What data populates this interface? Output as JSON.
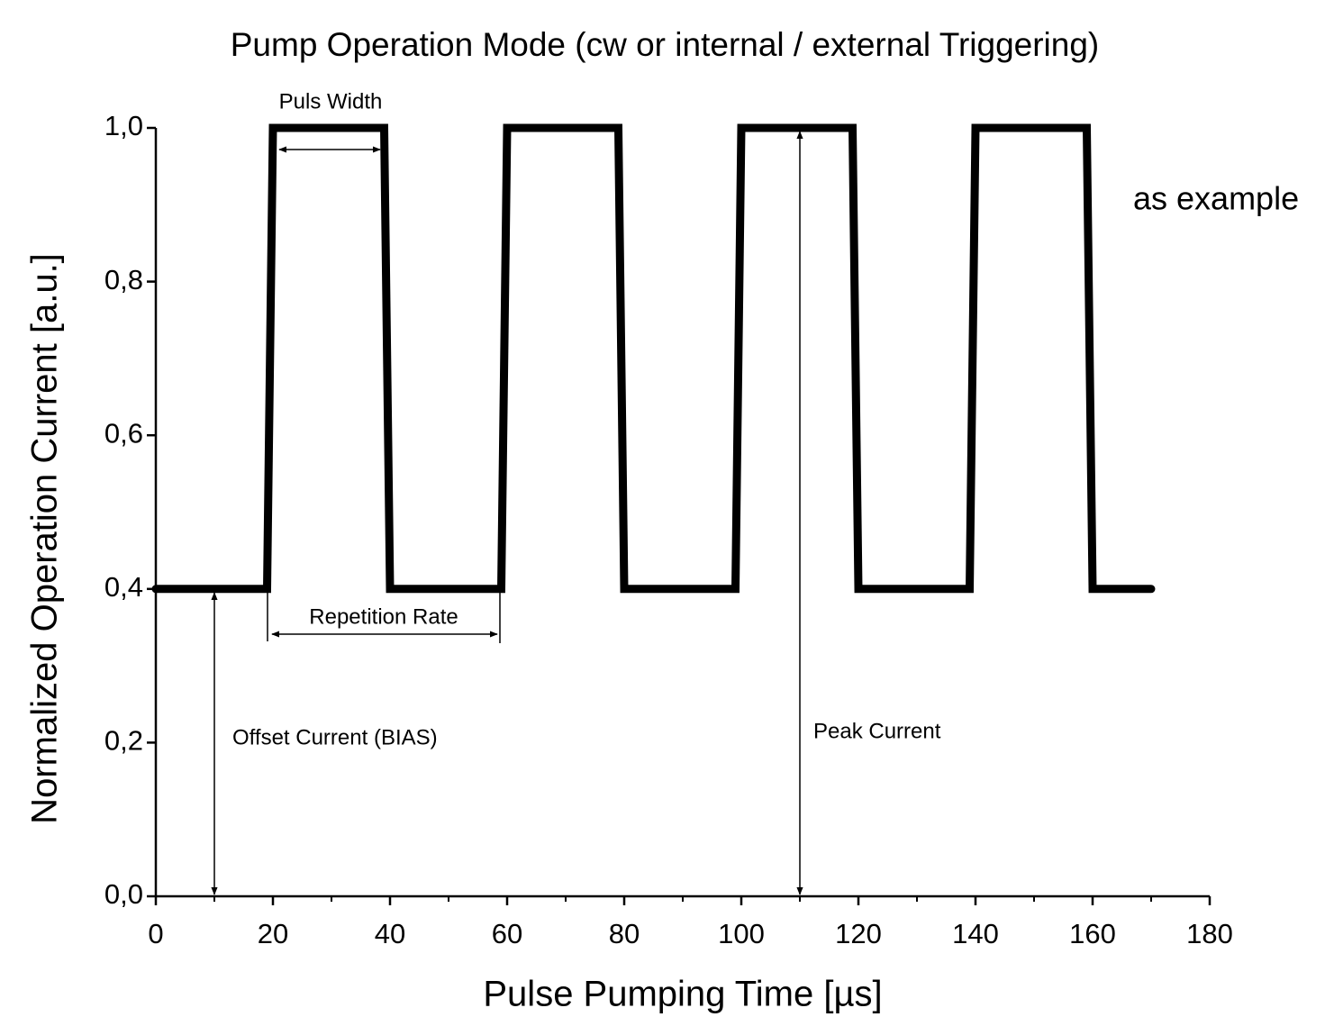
{
  "chart_data": {
    "type": "line",
    "title": "Pump Operation Mode (cw or internal / external Triggering)",
    "x_label": "Pulse Pumping Time [µs]",
    "y_label": "Normalized Operation Current [a.u.]",
    "x": [
      0,
      19,
      20,
      39,
      40,
      59,
      60,
      79,
      80,
      99,
      100,
      119,
      120,
      139,
      140,
      159,
      160,
      170
    ],
    "values": [
      0.4,
      0.4,
      1.0,
      1.0,
      0.4,
      0.4,
      1.0,
      1.0,
      0.4,
      0.4,
      1.0,
      1.0,
      0.4,
      0.4,
      1.0,
      1.0,
      0.4,
      0.4
    ],
    "color": "#000000",
    "xlim": [
      0,
      180
    ],
    "xticks": [
      0,
      20,
      40,
      60,
      80,
      100,
      120,
      140,
      160,
      180
    ],
    "ylim": [
      0,
      1
    ],
    "yticks": [
      {
        "value": 0,
        "label": "0,0"
      },
      {
        "value": 0.2,
        "label": "0,2"
      },
      {
        "value": 0.4,
        "label": "0,4"
      },
      {
        "value": 0.6,
        "label": "0,6"
      },
      {
        "value": 0.8,
        "label": "0,8"
      },
      {
        "value": 1.0,
        "label": "1,0"
      }
    ],
    "grid": false,
    "annotations": [
      "Puls Width",
      "Repetition Rate",
      "Offset Current (BIAS)",
      "Peak Current",
      "as example"
    ]
  }
}
